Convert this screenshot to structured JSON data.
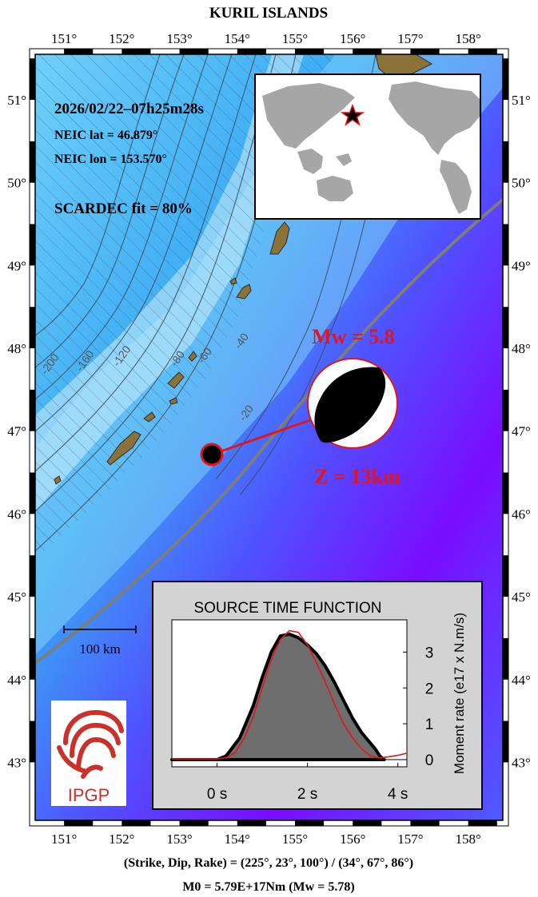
{
  "title": "KURIL ISLANDS",
  "event": {
    "datetime": "2026/02/22–07h25m28s",
    "lat_text": "NEIC lat  = 46.879°",
    "lon_text": "NEIC lon = 153.570°",
    "fit_text": "SCARDEC fit = 80%",
    "lat": 46.879,
    "lon": 153.57,
    "mw_text": "Mw = 5.8",
    "depth_text": "Z =  13km"
  },
  "map": {
    "lon_range": [
      150.5,
      158.6
    ],
    "lat_range": [
      42.3,
      51.55
    ],
    "lon_ticks": [
      151,
      152,
      153,
      154,
      155,
      156,
      157,
      158
    ],
    "lat_ticks": [
      43,
      44,
      45,
      46,
      47,
      48,
      49,
      50,
      51
    ],
    "contours": [
      "-200",
      "-160",
      "-120",
      "-80",
      "-60",
      "-40",
      "-20"
    ],
    "scale_bar_label": "100 km",
    "colors": {
      "deep": "#8a00ff",
      "mid": "#3d5cff",
      "shallow": "#35b7f5",
      "land": "#8a7239",
      "trench": "#808080",
      "accent": "#e0161a"
    }
  },
  "stf": {
    "title": "SOURCE TIME FUNCTION",
    "ylabel": "Moment rate (e17 x N.m/s)",
    "x_ticks": [
      "0 s",
      "2 s",
      "4 s"
    ],
    "y_ticks": [
      "0",
      "1",
      "2",
      "3"
    ]
  },
  "footer": {
    "angles": "(Strike, Dip, Rake) = (225°, 23°, 100°) / (34°, 67°, 86°)",
    "moment": "M0 = 5.79E+17Nm  (Mw = 5.78)"
  },
  "logo": {
    "text": "IPGP"
  },
  "chart_data": {
    "type": "area",
    "title": "SOURCE TIME FUNCTION",
    "xlabel": "",
    "ylabel": "Moment rate (e17 x N.m/s)",
    "xlim": [
      -1,
      4.2
    ],
    "ylim": [
      -0.2,
      3.9
    ],
    "series": [
      {
        "x": [
          -1,
          0,
          0.2,
          0.5,
          0.8,
          1.0,
          1.2,
          1.4,
          1.6,
          1.8,
          2.0,
          2.2,
          2.4,
          2.6,
          2.8,
          3.0,
          3.2,
          3.5,
          3.6,
          3.7
        ],
        "values": [
          0,
          0,
          0.1,
          0.6,
          1.5,
          2.3,
          3.0,
          3.45,
          3.5,
          3.4,
          3.2,
          2.95,
          2.6,
          2.15,
          1.65,
          1.15,
          0.75,
          0.3,
          0.1,
          0
        ]
      },
      {
        "x": [
          -1,
          0,
          0.2,
          0.4,
          0.6,
          0.8,
          1.0,
          1.2,
          1.4,
          1.6,
          1.8,
          2.0,
          2.2,
          2.4,
          2.6,
          2.8,
          3.0,
          3.2,
          3.4,
          3.6,
          3.8,
          4.0,
          4.2
        ],
        "values": [
          0.02,
          0.02,
          0.05,
          0.2,
          0.6,
          1.2,
          2.0,
          2.8,
          3.35,
          3.6,
          3.55,
          3.2,
          2.7,
          2.15,
          1.55,
          1.0,
          0.6,
          0.3,
          0.1,
          0.05,
          0.08,
          0.12,
          0.18
        ]
      }
    ]
  }
}
